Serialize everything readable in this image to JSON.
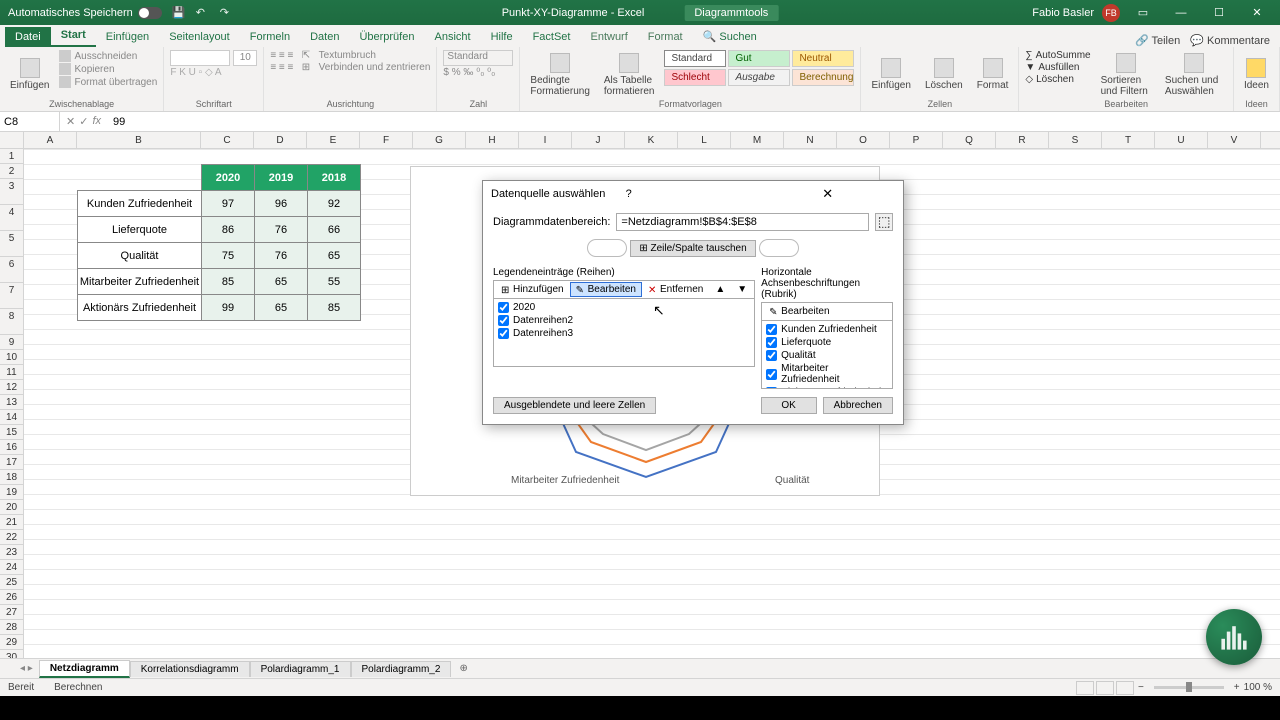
{
  "titlebar": {
    "autosave": "Automatisches Speichern",
    "doc_title": "Punkt-XY-Diagramme - Excel",
    "chart_tools": "Diagrammtools",
    "user": "Fabio Basler",
    "user_initials": "FB"
  },
  "tabs": {
    "file": "Datei",
    "start": "Start",
    "einfugen": "Einfügen",
    "seitenlayout": "Seitenlayout",
    "formeln": "Formeln",
    "daten": "Daten",
    "uberprufen": "Überprüfen",
    "ansicht": "Ansicht",
    "hilfe": "Hilfe",
    "factset": "FactSet",
    "entwurf": "Entwurf",
    "format": "Format",
    "suchen": "Suchen",
    "teilen": "Teilen",
    "kommentare": "Kommentare"
  },
  "ribbon": {
    "einfugen": "Einfügen",
    "ausschneiden": "Ausschneiden",
    "kopieren": "Kopieren",
    "format_ubertragen": "Format übertragen",
    "zwischenablage": "Zwischenablage",
    "schriftart": "Schriftart",
    "fontsize": "10",
    "ausrichtung": "Ausrichtung",
    "textumbruch": "Textumbruch",
    "verbinden": "Verbinden und zentrieren",
    "zahl": "Zahl",
    "standard": "Standard",
    "bedingte": "Bedingte Formatierung",
    "als_tabelle": "Als Tabelle formatieren",
    "formatvorlagen": "Formatvorlagen",
    "style_standard": "Standard",
    "style_gut": "Gut",
    "style_neutral": "Neutral",
    "style_schlecht": "Schlecht",
    "style_ausgabe": "Ausgabe",
    "style_berechnung": "Berechnung",
    "zellen_einfugen": "Einfügen",
    "loschen": "Löschen",
    "format": "Format",
    "zellen": "Zellen",
    "autosumme": "AutoSumme",
    "ausfullen": "Ausfüllen",
    "loschen2": "Löschen",
    "sortieren": "Sortieren und Filtern",
    "suchen": "Suchen und Auswählen",
    "bearbeiten": "Bearbeiten",
    "ideen": "Ideen"
  },
  "fbar": {
    "cellref": "C8",
    "formula": "99"
  },
  "columns": [
    "A",
    "B",
    "C",
    "D",
    "E",
    "F",
    "G",
    "H",
    "I",
    "J",
    "K",
    "L",
    "M",
    "N",
    "O",
    "P",
    "Q",
    "R",
    "S",
    "T",
    "U",
    "V"
  ],
  "table": {
    "years": [
      "2020",
      "2019",
      "2018"
    ],
    "rows": [
      {
        "label": "Kunden Zufriedenheit",
        "vals": [
          "97",
          "96",
          "92"
        ]
      },
      {
        "label": "Lieferquote",
        "vals": [
          "86",
          "76",
          "66"
        ]
      },
      {
        "label": "Qualität",
        "vals": [
          "75",
          "76",
          "65"
        ]
      },
      {
        "label": "Mitarbeiter Zufriedenheit",
        "vals": [
          "85",
          "65",
          "55"
        ]
      },
      {
        "label": "Aktionärs Zufriedenheit",
        "vals": [
          "99",
          "65",
          "85"
        ]
      }
    ],
    "header_bg": "#21a366",
    "val_bg": "#e8f2ec"
  },
  "chart": {
    "labels": {
      "mitarbeiter": "Mitarbeiter Zufriedenheit",
      "qualitat": "Qualität"
    },
    "series_colors": [
      "#4472c4",
      "#ed7d31",
      "#a5a5a5"
    ]
  },
  "dialog": {
    "title": "Datenquelle auswählen",
    "range_label": "Diagrammdatenbereich:",
    "range_value": "=Netzdiagramm!$B$4:$E$8",
    "switch": "Zeile/Spalte tauschen",
    "legend_label": "Legendeneinträge (Reihen)",
    "horiz_label": "Horizontale Achsenbeschriftungen (Rubrik)",
    "hinzufugen": "Hinzufügen",
    "bearbeiten": "Bearbeiten",
    "entfernen": "Entfernen",
    "series": [
      "2020",
      "Datenreihen2",
      "Datenreihen3"
    ],
    "categories": [
      "Kunden Zufriedenheit",
      "Lieferquote",
      "Qualität",
      "Mitarbeiter Zufriedenheit",
      "Aktionärs Zufriedenheit"
    ],
    "hidden": "Ausgeblendete und leere Zellen",
    "ok": "OK",
    "abbrechen": "Abbrechen"
  },
  "sheets": {
    "s1": "Netzdiagramm",
    "s2": "Korrelationsdiagramm",
    "s3": "Polardiagramm_1",
    "s4": "Polardiagramm_2"
  },
  "status": {
    "bereit": "Bereit",
    "berechnen": "Berechnen",
    "zoom": "100 %"
  }
}
